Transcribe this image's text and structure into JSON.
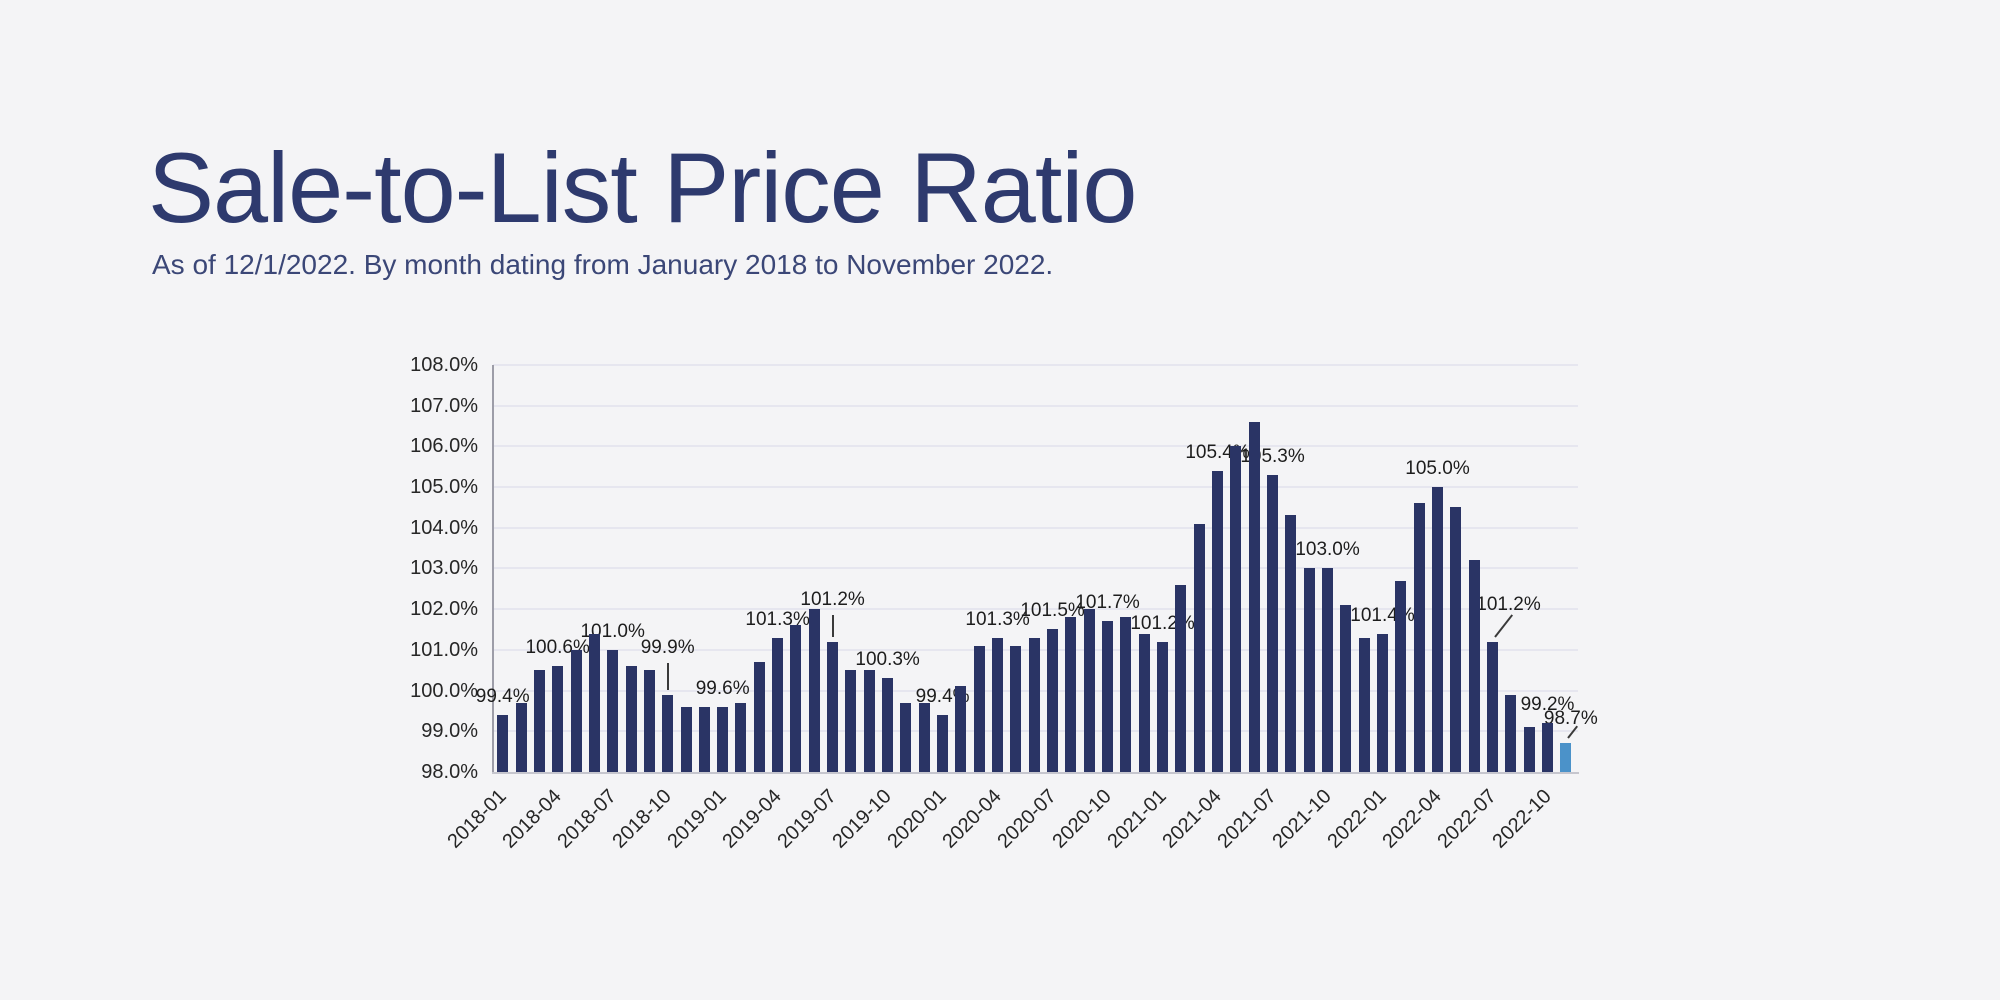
{
  "page": {
    "title": "Sale-to-List Price Ratio",
    "subtitle": "As of 12/1/2022. By month dating from January 2018 to November 2022.",
    "colors": {
      "background": "#f4f4f6",
      "title": "#2e3a6e",
      "subtitle": "#3b4777"
    }
  },
  "chart_data": {
    "type": "bar",
    "title": "Sale-to-List Price Ratio",
    "subtitle": "As of 12/1/2022. By month dating from January 2018 to November 2022.",
    "xlabel": "",
    "ylabel": "",
    "unit": "%",
    "ylim": [
      98.0,
      108.0
    ],
    "ytick_step": 1.0,
    "ytick_labels": [
      "98.0%",
      "99.0%",
      "100.0%",
      "101.0%",
      "102.0%",
      "103.0%",
      "104.0%",
      "105.0%",
      "106.0%",
      "107.0%",
      "108.0%"
    ],
    "grid": true,
    "legend": "none",
    "xtick_every": 3,
    "bar_color": "#2a3465",
    "highlight_color": "#4b92c9",
    "highlight_index": 58,
    "gridline_color": "#e6e6ef",
    "yaxis_line_color": "#9d9da8",
    "xaxis_line_color": "#c6c6ce",
    "categories": [
      "2018-01",
      "2018-02",
      "2018-03",
      "2018-04",
      "2018-05",
      "2018-06",
      "2018-07",
      "2018-08",
      "2018-09",
      "2018-10",
      "2018-11",
      "2018-12",
      "2019-01",
      "2019-02",
      "2019-03",
      "2019-04",
      "2019-05",
      "2019-06",
      "2019-07",
      "2019-08",
      "2019-09",
      "2019-10",
      "2019-11",
      "2019-12",
      "2020-01",
      "2020-02",
      "2020-03",
      "2020-04",
      "2020-05",
      "2020-06",
      "2020-07",
      "2020-08",
      "2020-09",
      "2020-10",
      "2020-11",
      "2020-12",
      "2021-01",
      "2021-02",
      "2021-03",
      "2021-04",
      "2021-05",
      "2021-06",
      "2021-07",
      "2021-08",
      "2021-09",
      "2021-10",
      "2021-11",
      "2021-12",
      "2022-01",
      "2022-02",
      "2022-03",
      "2022-04",
      "2022-05",
      "2022-06",
      "2022-07",
      "2022-08",
      "2022-09",
      "2022-10",
      "2022-11"
    ],
    "values": [
      99.4,
      99.7,
      100.5,
      100.6,
      101.0,
      101.4,
      101.0,
      100.6,
      100.5,
      99.9,
      99.6,
      99.6,
      99.6,
      99.7,
      100.7,
      101.3,
      101.6,
      102.0,
      101.2,
      100.5,
      100.5,
      100.3,
      99.7,
      99.7,
      99.4,
      100.1,
      101.1,
      101.3,
      101.1,
      101.3,
      101.5,
      101.8,
      102.0,
      101.7,
      101.8,
      101.4,
      101.2,
      102.6,
      104.1,
      105.4,
      106.0,
      106.6,
      105.3,
      104.3,
      103.0,
      103.0,
      102.1,
      101.3,
      101.4,
      102.7,
      104.6,
      105.0,
      104.5,
      103.2,
      101.2,
      99.9,
      99.1,
      99.2,
      98.7
    ],
    "data_labels": [
      {
        "index": 0,
        "text": "99.4%"
      },
      {
        "index": 3,
        "text": "100.6%"
      },
      {
        "index": 6,
        "text": "101.0%"
      },
      {
        "index": 9,
        "text": "99.9%",
        "lift": 36,
        "leader": "v"
      },
      {
        "index": 12,
        "text": "99.6%"
      },
      {
        "index": 15,
        "text": "101.3%"
      },
      {
        "index": 18,
        "text": "101.2%",
        "lift": 31,
        "leader": "v"
      },
      {
        "index": 21,
        "text": "100.3%"
      },
      {
        "index": 24,
        "text": "99.4%"
      },
      {
        "index": 27,
        "text": "101.3%"
      },
      {
        "index": 30,
        "text": "101.5%"
      },
      {
        "index": 33,
        "text": "101.7%"
      },
      {
        "index": 36,
        "text": "101.2%"
      },
      {
        "index": 39,
        "text": "105.4%"
      },
      {
        "index": 42,
        "text": "105.3%"
      },
      {
        "index": 45,
        "text": "103.0%"
      },
      {
        "index": 48,
        "text": "101.4%"
      },
      {
        "index": 51,
        "text": "105.0%"
      },
      {
        "index": 54,
        "text": "101.2%",
        "lift": 26,
        "dx": 16,
        "leader": "d"
      },
      {
        "index": 57,
        "text": "99.2%"
      },
      {
        "index": 58,
        "text": "98.7%",
        "lift": 13,
        "dx": 5,
        "leader": "d"
      }
    ]
  }
}
